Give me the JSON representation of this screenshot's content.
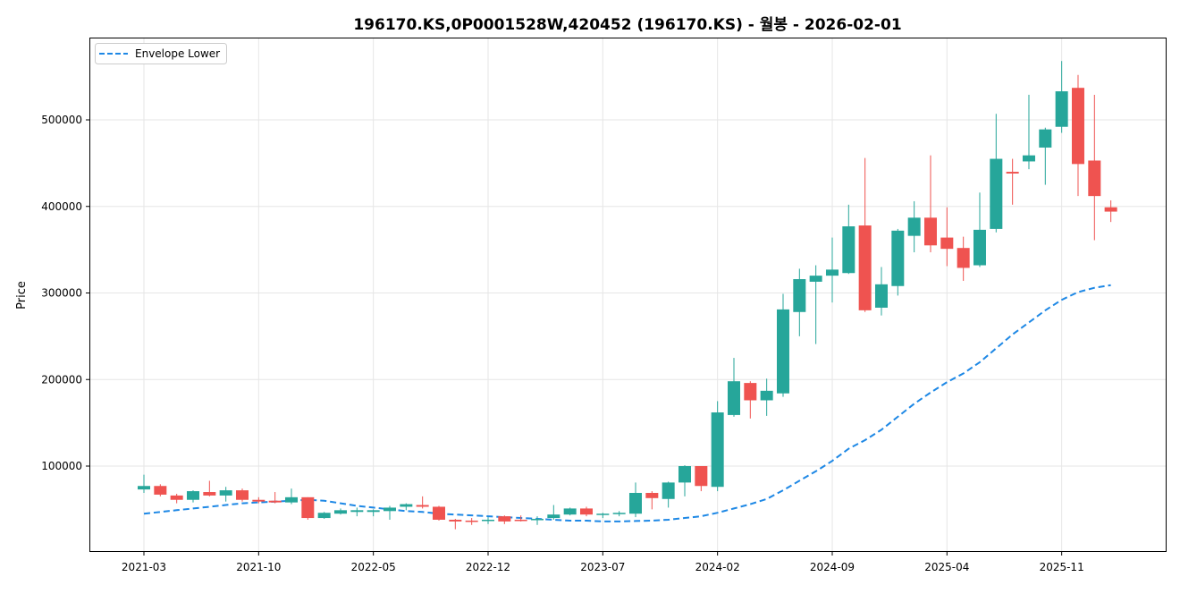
{
  "chart_data": {
    "type": "candlestick",
    "title": "196170.KS,0P0001528W,420452 (196170.KS) - 월봉 - 2026-02-01",
    "xlabel": "",
    "ylabel": "Price",
    "ylim": [
      0,
      590000
    ],
    "grid": true,
    "legend": {
      "placement": "top-left",
      "entries": [
        "Envelope Lower"
      ]
    },
    "y_ticks": [
      100000,
      200000,
      300000,
      400000,
      500000
    ],
    "y_tick_labels": [
      "100000",
      "200000",
      "300000",
      "400000",
      "500000"
    ],
    "x_tick_labels": [
      "2021-03",
      "2021-10",
      "2022-05",
      "2022-12",
      "2023-07",
      "2024-02",
      "2024-09",
      "2025-04",
      "2025-11"
    ],
    "x_tick_index": [
      0,
      7,
      14,
      21,
      28,
      35,
      42,
      49,
      56
    ],
    "colors": {
      "up": "#26a69a",
      "down": "#ef5350",
      "envelope": "#1e88e5"
    },
    "start_month": "2021-03",
    "ohlc": [
      [
        73000,
        90000,
        69000,
        77000
      ],
      [
        77000,
        79000,
        65000,
        67000
      ],
      [
        66000,
        68000,
        57000,
        61000
      ],
      [
        61000,
        72000,
        58000,
        71000
      ],
      [
        70000,
        83000,
        65000,
        66000
      ],
      [
        66000,
        76000,
        59000,
        72000
      ],
      [
        72000,
        74000,
        59000,
        61000
      ],
      [
        61000,
        64000,
        57000,
        59000
      ],
      [
        60000,
        70000,
        57000,
        58000
      ],
      [
        58000,
        74000,
        56000,
        64000
      ],
      [
        64000,
        64000,
        38000,
        40000
      ],
      [
        40000,
        47000,
        39000,
        46000
      ],
      [
        45000,
        51000,
        44000,
        49000
      ],
      [
        47000,
        52000,
        42000,
        49000
      ],
      [
        47000,
        50000,
        42000,
        49000
      ],
      [
        48000,
        54000,
        38000,
        52000
      ],
      [
        53000,
        57000,
        49000,
        56000
      ],
      [
        55000,
        65000,
        51000,
        53000
      ],
      [
        53000,
        54000,
        37000,
        38000
      ],
      [
        38000,
        39000,
        27000,
        36000
      ],
      [
        37000,
        40000,
        32000,
        36000
      ],
      [
        37000,
        41000,
        33000,
        38000
      ],
      [
        42000,
        43000,
        33000,
        36000
      ],
      [
        38000,
        43000,
        36000,
        37000
      ],
      [
        38000,
        42000,
        32000,
        39000
      ],
      [
        40000,
        55000,
        38000,
        44000
      ],
      [
        44000,
        52000,
        43000,
        51000
      ],
      [
        51000,
        53000,
        42000,
        44000
      ],
      [
        44000,
        46000,
        40000,
        45000
      ],
      [
        45000,
        48000,
        42000,
        46000
      ],
      [
        45000,
        81000,
        41000,
        69000
      ],
      [
        69000,
        71000,
        50000,
        63000
      ],
      [
        62000,
        82000,
        52000,
        81000
      ],
      [
        81000,
        101000,
        65000,
        100000
      ],
      [
        100000,
        100000,
        71000,
        77000
      ],
      [
        76000,
        175000,
        71000,
        162000
      ],
      [
        159000,
        225000,
        157000,
        198000
      ],
      [
        196000,
        198000,
        155000,
        176000
      ],
      [
        176000,
        201000,
        158000,
        187000
      ],
      [
        184000,
        299000,
        180000,
        281000
      ],
      [
        278000,
        328000,
        250000,
        316000
      ],
      [
        313000,
        332000,
        241000,
        320000
      ],
      [
        320000,
        364000,
        289000,
        327000
      ],
      [
        323000,
        402000,
        322000,
        377000
      ],
      [
        378000,
        456000,
        278000,
        280000
      ],
      [
        283000,
        330000,
        274000,
        310000
      ],
      [
        308000,
        374000,
        297000,
        372000
      ],
      [
        366000,
        406000,
        347000,
        387000
      ],
      [
        387000,
        459000,
        347000,
        355000
      ],
      [
        364000,
        399000,
        331000,
        351000
      ],
      [
        352000,
        365000,
        314000,
        329000
      ],
      [
        332000,
        416000,
        330000,
        373000
      ],
      [
        374000,
        507000,
        370000,
        455000
      ],
      [
        440000,
        455000,
        402000,
        438000
      ],
      [
        452000,
        529000,
        443000,
        459000
      ],
      [
        468000,
        491000,
        425000,
        489000
      ],
      [
        492000,
        568000,
        485000,
        533000
      ],
      [
        537000,
        552000,
        412000,
        449000
      ],
      [
        453000,
        529000,
        361000,
        412000
      ],
      [
        399000,
        407000,
        382000,
        394000
      ]
    ],
    "envelope_lower": [
      45000,
      47000,
      49000,
      51000,
      53000,
      55000,
      57000,
      58000,
      59000,
      60000,
      61000,
      60000,
      57000,
      54000,
      52000,
      50000,
      48000,
      47000,
      45000,
      44000,
      43000,
      42000,
      41000,
      40000,
      39000,
      38000,
      37000,
      37000,
      36000,
      36000,
      36500,
      37000,
      38000,
      40000,
      42000,
      46000,
      51000,
      56000,
      62000,
      72000,
      83000,
      94000,
      106000,
      120000,
      130000,
      142000,
      157000,
      172000,
      185000,
      197000,
      207000,
      220000,
      236000,
      252000,
      266000,
      280000,
      292000,
      301000,
      306000,
      309000
    ]
  }
}
